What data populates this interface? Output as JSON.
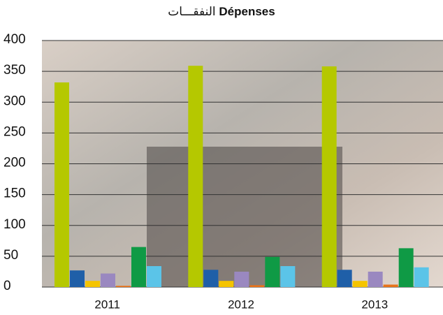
{
  "chart_data": {
    "type": "bar",
    "title": {
      "ar": "النفقـــات",
      "fr": "Dépenses"
    },
    "categories": [
      "2011",
      "2012",
      "2013"
    ],
    "series": [
      {
        "color": "#b5c800",
        "values": [
          332,
          359,
          358
        ]
      },
      {
        "color": "#1f5fa8",
        "values": [
          27,
          28,
          28
        ]
      },
      {
        "color": "#f5c400",
        "values": [
          10,
          10,
          10
        ]
      },
      {
        "color": "#9a88c0",
        "values": [
          22,
          25,
          25
        ]
      },
      {
        "color": "#e8731a",
        "values": [
          2,
          3,
          4
        ]
      },
      {
        "color": "#0f9a45",
        "values": [
          65,
          49,
          63
        ]
      },
      {
        "color": "#5bc4e8",
        "values": [
          34,
          34,
          32
        ]
      }
    ],
    "ylim": [
      0,
      400
    ],
    "yticks": [
      0,
      50,
      100,
      150,
      200,
      250,
      300,
      350,
      400
    ],
    "grid": true
  }
}
